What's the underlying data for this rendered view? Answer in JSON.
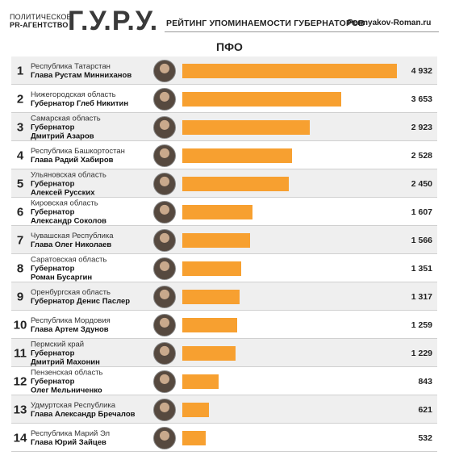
{
  "header": {
    "agency_line1": "ПОЛИТИЧЕСКОЕ",
    "agency_line2": "PR-АГЕНТСТВО",
    "logo": "Г.У.Р.У.",
    "subtitle": "РЕЙТИНГ УПОМИНАЕМОСТИ ГУБЕРНАТОРОВ",
    "site": "Permyakov-Roman.ru"
  },
  "colors": {
    "bar": "#f7a030",
    "row_alt": "#efefef"
  },
  "chart_data": {
    "type": "bar",
    "title": "ПФО",
    "orientation": "horizontal",
    "categories": [
      {
        "rank": "1",
        "region": "Республика Татарстан",
        "lines": [
          "Глава Рустам Минниханов"
        ]
      },
      {
        "rank": "2",
        "region": "Нижегородская область",
        "lines": [
          "Губернатор Глеб Никитин"
        ]
      },
      {
        "rank": "3",
        "region": "Самарская область",
        "lines": [
          "Губернатор",
          "Дмитрий Азаров"
        ]
      },
      {
        "rank": "4",
        "region": "Республика Башкортостан",
        "lines": [
          "Глава Радий Хабиров"
        ]
      },
      {
        "rank": "5",
        "region": "Ульяновская область",
        "lines": [
          "Губернатор",
          "Алексей Русских"
        ]
      },
      {
        "rank": "6",
        "region": "Кировская область",
        "lines": [
          "Губернатор",
          "Александр Соколов"
        ]
      },
      {
        "rank": "7",
        "region": "Чувашская Республика",
        "lines": [
          "Глава Олег Николаев"
        ]
      },
      {
        "rank": "8",
        "region": "Саратовская область",
        "lines": [
          "Губернатор",
          "Роман Бусаргин"
        ]
      },
      {
        "rank": "9",
        "region": "Оренбургская область",
        "lines": [
          "Губернатор Денис Паслер"
        ]
      },
      {
        "rank": "10",
        "region": "Республика Мордовия",
        "lines": [
          "Глава Артем Здунов"
        ]
      },
      {
        "rank": "11",
        "region": "Пермский край",
        "lines": [
          "Губернатор",
          "Дмитрий Махонин"
        ]
      },
      {
        "rank": "12",
        "region": "Пензенская область",
        "lines": [
          "Губернатор",
          "Олег Мельниченко"
        ]
      },
      {
        "rank": "13",
        "region": "Удмуртская Республика",
        "lines": [
          "Глава Александр Бречалов"
        ]
      },
      {
        "rank": "14",
        "region": "Республика Марий Эл",
        "lines": [
          "Глава Юрий Зайцев"
        ]
      }
    ],
    "values": [
      4932,
      3653,
      2923,
      2528,
      2450,
      1607,
      1566,
      1351,
      1317,
      1259,
      1229,
      843,
      621,
      532
    ],
    "value_labels": [
      "4 932",
      "3 653",
      "2 923",
      "2 528",
      "2 450",
      "1 607",
      "1 566",
      "1 351",
      "1 317",
      "1 259",
      "1 229",
      "843",
      "621",
      "532"
    ],
    "xlim": [
      0,
      4932
    ],
    "grid": false,
    "legend": "none"
  }
}
